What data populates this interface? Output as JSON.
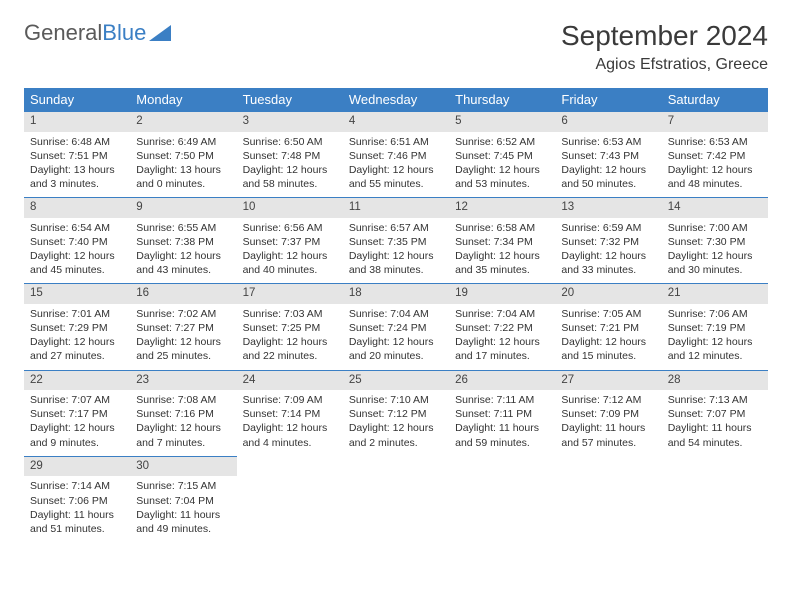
{
  "logo": {
    "text1": "General",
    "text2": "Blue"
  },
  "title": "September 2024",
  "location": "Agios Efstratios, Greece",
  "colors": {
    "header_bg": "#3b7fc4",
    "daynum_bg": "#e5e5e5",
    "border": "#3b7fc4",
    "text": "#333333",
    "page_bg": "#ffffff"
  },
  "daynames": [
    "Sunday",
    "Monday",
    "Tuesday",
    "Wednesday",
    "Thursday",
    "Friday",
    "Saturday"
  ],
  "weeks": [
    [
      {
        "n": "1",
        "sr": "Sunrise: 6:48 AM",
        "ss": "Sunset: 7:51 PM",
        "dl": "Daylight: 13 hours and 3 minutes."
      },
      {
        "n": "2",
        "sr": "Sunrise: 6:49 AM",
        "ss": "Sunset: 7:50 PM",
        "dl": "Daylight: 13 hours and 0 minutes."
      },
      {
        "n": "3",
        "sr": "Sunrise: 6:50 AM",
        "ss": "Sunset: 7:48 PM",
        "dl": "Daylight: 12 hours and 58 minutes."
      },
      {
        "n": "4",
        "sr": "Sunrise: 6:51 AM",
        "ss": "Sunset: 7:46 PM",
        "dl": "Daylight: 12 hours and 55 minutes."
      },
      {
        "n": "5",
        "sr": "Sunrise: 6:52 AM",
        "ss": "Sunset: 7:45 PM",
        "dl": "Daylight: 12 hours and 53 minutes."
      },
      {
        "n": "6",
        "sr": "Sunrise: 6:53 AM",
        "ss": "Sunset: 7:43 PM",
        "dl": "Daylight: 12 hours and 50 minutes."
      },
      {
        "n": "7",
        "sr": "Sunrise: 6:53 AM",
        "ss": "Sunset: 7:42 PM",
        "dl": "Daylight: 12 hours and 48 minutes."
      }
    ],
    [
      {
        "n": "8",
        "sr": "Sunrise: 6:54 AM",
        "ss": "Sunset: 7:40 PM",
        "dl": "Daylight: 12 hours and 45 minutes."
      },
      {
        "n": "9",
        "sr": "Sunrise: 6:55 AM",
        "ss": "Sunset: 7:38 PM",
        "dl": "Daylight: 12 hours and 43 minutes."
      },
      {
        "n": "10",
        "sr": "Sunrise: 6:56 AM",
        "ss": "Sunset: 7:37 PM",
        "dl": "Daylight: 12 hours and 40 minutes."
      },
      {
        "n": "11",
        "sr": "Sunrise: 6:57 AM",
        "ss": "Sunset: 7:35 PM",
        "dl": "Daylight: 12 hours and 38 minutes."
      },
      {
        "n": "12",
        "sr": "Sunrise: 6:58 AM",
        "ss": "Sunset: 7:34 PM",
        "dl": "Daylight: 12 hours and 35 minutes."
      },
      {
        "n": "13",
        "sr": "Sunrise: 6:59 AM",
        "ss": "Sunset: 7:32 PM",
        "dl": "Daylight: 12 hours and 33 minutes."
      },
      {
        "n": "14",
        "sr": "Sunrise: 7:00 AM",
        "ss": "Sunset: 7:30 PM",
        "dl": "Daylight: 12 hours and 30 minutes."
      }
    ],
    [
      {
        "n": "15",
        "sr": "Sunrise: 7:01 AM",
        "ss": "Sunset: 7:29 PM",
        "dl": "Daylight: 12 hours and 27 minutes."
      },
      {
        "n": "16",
        "sr": "Sunrise: 7:02 AM",
        "ss": "Sunset: 7:27 PM",
        "dl": "Daylight: 12 hours and 25 minutes."
      },
      {
        "n": "17",
        "sr": "Sunrise: 7:03 AM",
        "ss": "Sunset: 7:25 PM",
        "dl": "Daylight: 12 hours and 22 minutes."
      },
      {
        "n": "18",
        "sr": "Sunrise: 7:04 AM",
        "ss": "Sunset: 7:24 PM",
        "dl": "Daylight: 12 hours and 20 minutes."
      },
      {
        "n": "19",
        "sr": "Sunrise: 7:04 AM",
        "ss": "Sunset: 7:22 PM",
        "dl": "Daylight: 12 hours and 17 minutes."
      },
      {
        "n": "20",
        "sr": "Sunrise: 7:05 AM",
        "ss": "Sunset: 7:21 PM",
        "dl": "Daylight: 12 hours and 15 minutes."
      },
      {
        "n": "21",
        "sr": "Sunrise: 7:06 AM",
        "ss": "Sunset: 7:19 PM",
        "dl": "Daylight: 12 hours and 12 minutes."
      }
    ],
    [
      {
        "n": "22",
        "sr": "Sunrise: 7:07 AM",
        "ss": "Sunset: 7:17 PM",
        "dl": "Daylight: 12 hours and 9 minutes."
      },
      {
        "n": "23",
        "sr": "Sunrise: 7:08 AM",
        "ss": "Sunset: 7:16 PM",
        "dl": "Daylight: 12 hours and 7 minutes."
      },
      {
        "n": "24",
        "sr": "Sunrise: 7:09 AM",
        "ss": "Sunset: 7:14 PM",
        "dl": "Daylight: 12 hours and 4 minutes."
      },
      {
        "n": "25",
        "sr": "Sunrise: 7:10 AM",
        "ss": "Sunset: 7:12 PM",
        "dl": "Daylight: 12 hours and 2 minutes."
      },
      {
        "n": "26",
        "sr": "Sunrise: 7:11 AM",
        "ss": "Sunset: 7:11 PM",
        "dl": "Daylight: 11 hours and 59 minutes."
      },
      {
        "n": "27",
        "sr": "Sunrise: 7:12 AM",
        "ss": "Sunset: 7:09 PM",
        "dl": "Daylight: 11 hours and 57 minutes."
      },
      {
        "n": "28",
        "sr": "Sunrise: 7:13 AM",
        "ss": "Sunset: 7:07 PM",
        "dl": "Daylight: 11 hours and 54 minutes."
      }
    ],
    [
      {
        "n": "29",
        "sr": "Sunrise: 7:14 AM",
        "ss": "Sunset: 7:06 PM",
        "dl": "Daylight: 11 hours and 51 minutes."
      },
      {
        "n": "30",
        "sr": "Sunrise: 7:15 AM",
        "ss": "Sunset: 7:04 PM",
        "dl": "Daylight: 11 hours and 49 minutes."
      },
      null,
      null,
      null,
      null,
      null
    ]
  ]
}
